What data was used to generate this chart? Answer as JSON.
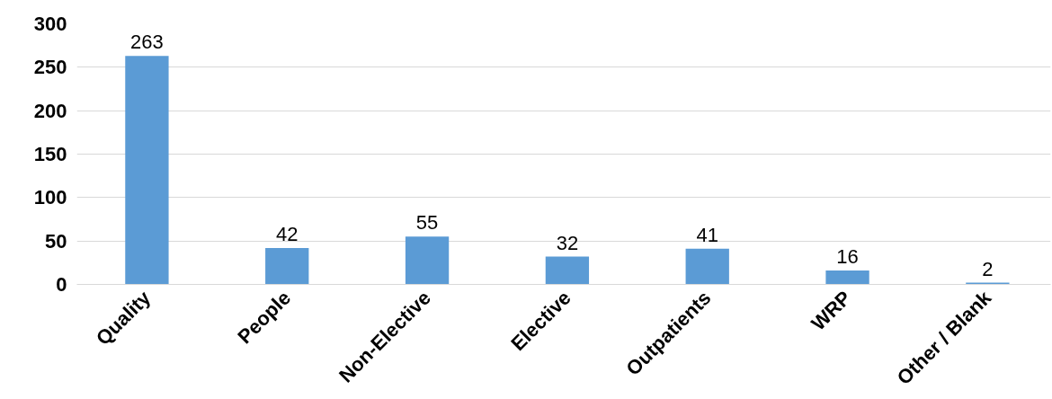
{
  "chart_data": {
    "type": "bar",
    "categories": [
      "Quality",
      "People",
      "Non-Elective",
      "Elective",
      "Outpatients",
      "WRP",
      "Other / Blank"
    ],
    "values": [
      263,
      42,
      55,
      32,
      41,
      16,
      2
    ],
    "color": "#5b9bd5",
    "ylim": [
      0,
      300
    ],
    "yticks": [
      0,
      50,
      100,
      150,
      200,
      250,
      300
    ],
    "grid": "y",
    "data_labels": true
  }
}
